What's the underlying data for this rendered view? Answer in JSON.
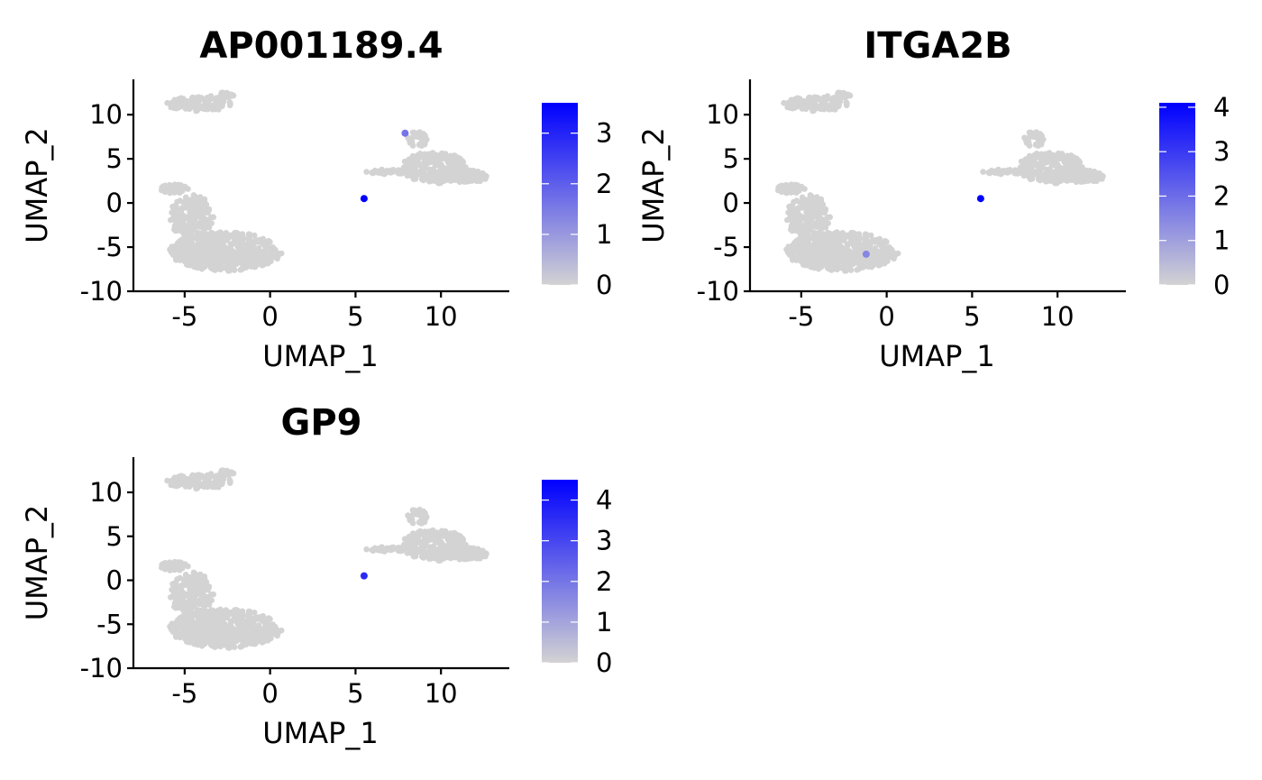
{
  "colors": {
    "low": "#d3d3d3",
    "high": "#0000ff",
    "background": "#ffffff"
  },
  "chart_data": [
    {
      "type": "scatter",
      "title": "AP001189.4",
      "xlabel": "UMAP_1",
      "ylabel": "UMAP_2",
      "xlim": [
        -8,
        14
      ],
      "ylim": [
        -10,
        14
      ],
      "xticks": [
        -5,
        0,
        5,
        10
      ],
      "yticks": [
        10,
        5,
        0,
        -5,
        -10
      ],
      "grid": false,
      "legend_placement": "right",
      "colorbar": {
        "min": 0,
        "max": 3.6,
        "ticks": [
          0,
          1,
          2,
          3
        ]
      },
      "highlight_points": [
        {
          "x": 7.9,
          "y": 7.9,
          "value": 1.6
        },
        {
          "x": 5.5,
          "y": 0.5,
          "value": 3.6
        }
      ]
    },
    {
      "type": "scatter",
      "title": "ITGA2B",
      "xlabel": "UMAP_1",
      "ylabel": "UMAP_2",
      "xlim": [
        -8,
        14
      ],
      "ylim": [
        -10,
        14
      ],
      "xticks": [
        -5,
        0,
        5,
        10
      ],
      "yticks": [
        10,
        5,
        0,
        -5,
        -10
      ],
      "grid": false,
      "legend_placement": "right",
      "colorbar": {
        "min": 0,
        "max": 4.1,
        "ticks": [
          0,
          1,
          2,
          3,
          4
        ]
      },
      "highlight_points": [
        {
          "x": -1.2,
          "y": -5.8,
          "value": 1.5
        },
        {
          "x": 5.5,
          "y": 0.5,
          "value": 4.1
        }
      ]
    },
    {
      "type": "scatter",
      "title": "GP9",
      "xlabel": "UMAP_1",
      "ylabel": "UMAP_2",
      "xlim": [
        -8,
        14
      ],
      "ylim": [
        -10,
        14
      ],
      "xticks": [
        -5,
        0,
        5,
        10
      ],
      "yticks": [
        10,
        5,
        0,
        -5,
        -10
      ],
      "grid": false,
      "legend_placement": "right",
      "colorbar": {
        "min": 0,
        "max": 4.5,
        "ticks": [
          0,
          1,
          2,
          3,
          4
        ]
      },
      "highlight_points": [
        {
          "x": 5.5,
          "y": 0.5,
          "value": 3.6
        }
      ]
    }
  ]
}
